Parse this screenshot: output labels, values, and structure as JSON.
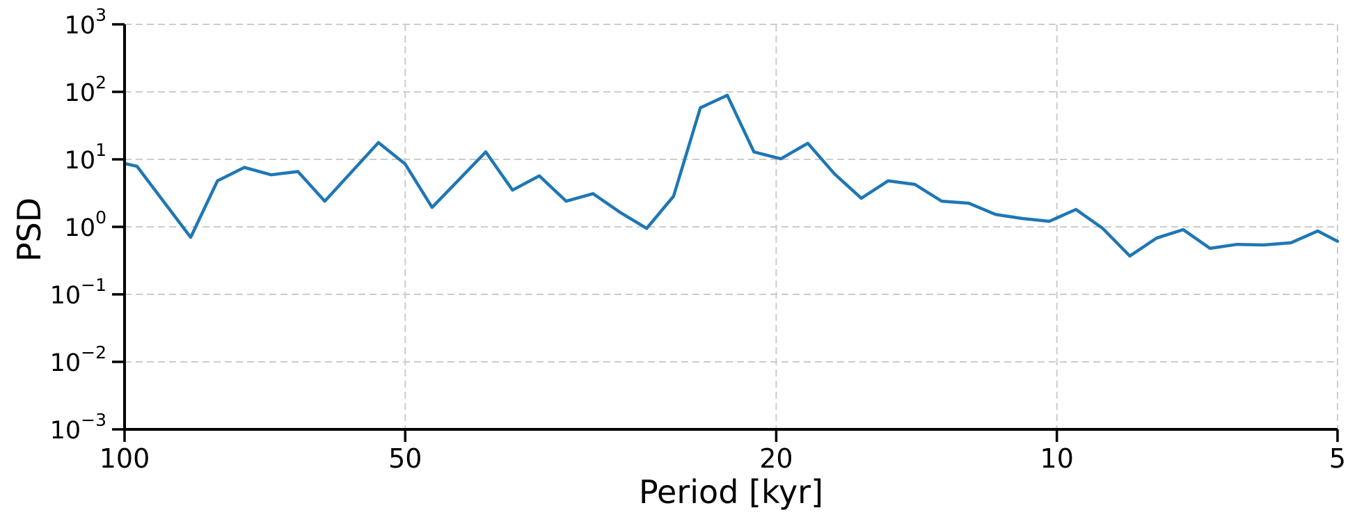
{
  "figure": {
    "background": "#ffffff"
  },
  "chart_data": {
    "type": "line",
    "title": "",
    "xlabel": "Period [kyr]",
    "ylabel": "PSD",
    "x_scale": "log",
    "x_reversed": true,
    "y_scale": "log",
    "xlim": [
      100,
      5
    ],
    "ylim": [
      0.001,
      1000
    ],
    "x_ticks": [
      100,
      50,
      20,
      10,
      5
    ],
    "x_tick_labels": [
      "100",
      "50",
      "20",
      "10",
      "5"
    ],
    "y_tick_exponents": [
      3,
      2,
      1,
      0,
      -1,
      -2,
      -3
    ],
    "grid": true,
    "legend": "none",
    "line_color": "#1f77b4",
    "grid_color": "#cccccc",
    "spine_color": "#000000",
    "series": [
      {
        "name": "PSD",
        "points": [
          [
            100.0,
            8.7
          ],
          [
            96.98,
            7.9
          ],
          [
            90.76,
            2.35
          ],
          [
            84.94,
            0.7
          ],
          [
            79.5,
            4.8
          ],
          [
            74.4,
            7.6
          ],
          [
            69.63,
            5.9
          ],
          [
            65.17,
            6.6
          ],
          [
            60.99,
            2.4
          ],
          [
            57.08,
            6.5
          ],
          [
            53.42,
            17.7
          ],
          [
            50.0,
            8.5
          ],
          [
            46.79,
            1.94
          ],
          [
            43.79,
            5.0
          ],
          [
            40.98,
            12.9
          ],
          [
            38.36,
            3.5
          ],
          [
            35.9,
            5.7
          ],
          [
            33.6,
            2.4
          ],
          [
            31.44,
            3.1
          ],
          [
            29.43,
            1.65
          ],
          [
            27.54,
            0.95
          ],
          [
            25.77,
            2.84
          ],
          [
            24.12,
            58.0
          ],
          [
            22.57,
            89.0
          ],
          [
            21.13,
            12.9
          ],
          [
            19.77,
            10.2
          ],
          [
            18.5,
            17.3
          ],
          [
            17.32,
            6.1
          ],
          [
            16.21,
            2.65
          ],
          [
            15.17,
            4.8
          ],
          [
            14.2,
            4.25
          ],
          [
            13.29,
            2.4
          ],
          [
            12.43,
            2.24
          ],
          [
            11.64,
            1.53
          ],
          [
            10.89,
            1.33
          ],
          [
            10.19,
            1.21
          ],
          [
            9.54,
            1.81
          ],
          [
            8.93,
            0.95
          ],
          [
            8.35,
            0.37
          ],
          [
            7.82,
            0.68
          ],
          [
            7.32,
            0.91
          ],
          [
            6.85,
            0.48
          ],
          [
            6.41,
            0.55
          ],
          [
            6.0,
            0.54
          ],
          [
            5.61,
            0.58
          ],
          [
            5.25,
            0.87
          ],
          [
            5.0,
            0.61
          ]
        ]
      }
    ]
  }
}
